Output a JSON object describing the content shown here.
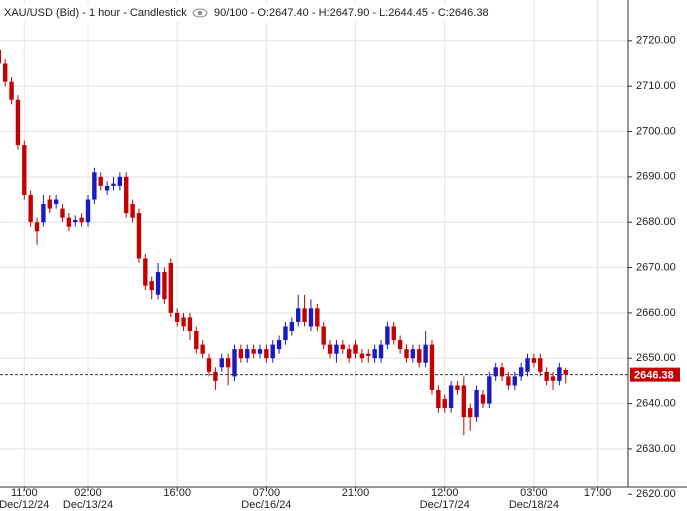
{
  "chart_data": {
    "type": "candlestick",
    "title": "XAU/USD (Bid) - 1 hour - Candlestick",
    "subtitle": "90/100 - O:2647.40 - H:2647.90 - L:2644.45 - C:2646.38",
    "categories": [
      null,
      null,
      null,
      null,
      "11:00",
      null,
      null,
      null,
      null,
      null,
      null,
      null,
      null,
      null,
      "02:00",
      null,
      null,
      null,
      null,
      null,
      null,
      null,
      null,
      null,
      null,
      null,
      null,
      null,
      "16:00",
      null,
      null,
      null,
      null,
      null,
      null,
      null,
      null,
      null,
      null,
      null,
      null,
      null,
      "07:00",
      null,
      null,
      null,
      null,
      null,
      null,
      null,
      null,
      null,
      null,
      null,
      null,
      null,
      "21:00",
      null,
      null,
      null,
      null,
      null,
      null,
      null,
      null,
      null,
      null,
      null,
      null,
      null,
      "12:00",
      null,
      null,
      null,
      null,
      null,
      null,
      null,
      null,
      null,
      null,
      null,
      null,
      null,
      "03:00",
      null,
      null,
      null,
      null,
      null,
      null,
      null,
      null,
      null,
      "17:00"
    ],
    "dates": [
      null,
      null,
      null,
      null,
      "Dec/12/24",
      null,
      null,
      null,
      null,
      null,
      null,
      null,
      null,
      null,
      "Dec/13/24",
      null,
      null,
      null,
      null,
      null,
      null,
      null,
      null,
      null,
      null,
      null,
      null,
      null,
      null,
      null,
      null,
      null,
      null,
      null,
      null,
      null,
      null,
      null,
      null,
      null,
      null,
      null,
      "Dec/16/24",
      null,
      null,
      null,
      null,
      null,
      null,
      null,
      null,
      null,
      null,
      null,
      null,
      null,
      null,
      null,
      null,
      null,
      null,
      null,
      null,
      null,
      null,
      null,
      null,
      null,
      null,
      null,
      "Dec/17/24",
      null,
      null,
      null,
      null,
      null,
      null,
      null,
      null,
      null,
      null,
      null,
      null,
      null,
      "Dec/18/24",
      null,
      null,
      null,
      null,
      null,
      null,
      null,
      null,
      null,
      null
    ],
    "open": [
      2718,
      2715,
      2711,
      2707,
      2697,
      2686,
      2680,
      2680,
      2685,
      2684,
      2683,
      2681,
      2680,
      2681,
      2680,
      2685,
      2690,
      2687,
      2688,
      2688,
      2690,
      2684,
      2682,
      2672,
      2667,
      2664,
      2669,
      2671,
      2660,
      2659,
      2659,
      2656,
      2653,
      2650,
      2647,
      2648,
      2650,
      2646,
      2652,
      2650,
      2652,
      2651,
      2652,
      2650,
      2652,
      2654,
      2656,
      2658,
      2661,
      2657,
      2661,
      2657,
      2653,
      2651,
      2653,
      2652,
      2653,
      2651,
      2651,
      2650,
      2650,
      2653,
      2657,
      2654,
      2652,
      2650,
      2652,
      2649,
      2653,
      2643,
      2641,
      2639,
      2644,
      2644,
      2639,
      2637,
      2642,
      2640,
      2646,
      2648,
      2646,
      2644,
      2646,
      2647,
      2650,
      2650,
      2647,
      2646,
      2645,
      2647.4,
      null,
      null,
      null,
      null,
      null
    ],
    "high": [
      2719,
      2716,
      2712,
      2708,
      2698,
      2687,
      2681,
      2686,
      2686,
      2686,
      2684,
      2682,
      2681.5,
      2682,
      2686,
      2692,
      2691,
      2689,
      2690,
      2691,
      2691,
      2685,
      2683,
      2673,
      2668,
      2671,
      2670,
      2672,
      2661,
      2660,
      2660,
      2657,
      2654,
      2651,
      2648,
      2651,
      2651,
      2653,
      2653,
      2653,
      2653,
      2653,
      2653,
      2654,
      2655,
      2658,
      2659,
      2664,
      2664,
      2663,
      2662,
      2658,
      2654,
      2654,
      2654,
      2653,
      2654,
      2652,
      2652,
      2653,
      2654,
      2658,
      2658,
      2655,
      2653,
      2653,
      2653,
      2656,
      2654,
      2644,
      2642,
      2645,
      2645,
      2646,
      2640,
      2644,
      2643,
      2647,
      2649,
      2649,
      2647,
      2647,
      2649,
      2651,
      2651,
      2651,
      2648,
      2647,
      2649,
      2647.9,
      null,
      null,
      null,
      null,
      null
    ],
    "low": [
      2714,
      2710,
      2706,
      2696,
      2685,
      2679,
      2675,
      2679,
      2682,
      2683,
      2680,
      2678,
      2679,
      2679,
      2679,
      2684,
      2687,
      2686,
      2687,
      2687,
      2681,
      2680,
      2671,
      2665,
      2663,
      2663,
      2662,
      2659,
      2657,
      2656,
      2654,
      2651,
      2650,
      2646,
      2643,
      2647,
      2644,
      2645,
      2649,
      2649,
      2650,
      2650,
      2649,
      2649,
      2651,
      2653,
      2655,
      2657,
      2657,
      2656,
      2656,
      2652,
      2650,
      2649,
      2651,
      2649,
      2650,
      2649,
      2649,
      2649,
      2649,
      2652,
      2653,
      2651,
      2649,
      2649,
      2648,
      2648,
      2642,
      2638,
      2638,
      2638,
      2642,
      2633,
      2634,
      2636,
      2639,
      2639,
      2645,
      2645,
      2643,
      2643,
      2645,
      2646,
      2648,
      2646,
      2644,
      2643,
      2644,
      2644.45,
      null,
      null,
      null,
      null,
      null
    ],
    "close": [
      2715,
      2711,
      2707,
      2697,
      2686,
      2680,
      2678,
      2684,
      2683,
      2685,
      2681,
      2679,
      2680.5,
      2680,
      2685,
      2691,
      2688,
      2688,
      2688.5,
      2690,
      2682,
      2681,
      2672,
      2666,
      2665,
      2669,
      2663,
      2660,
      2658,
      2657,
      2656,
      2652,
      2651,
      2647,
      2645,
      2650,
      2648,
      2652,
      2650,
      2652,
      2651,
      2652,
      2650,
      2653,
      2654,
      2657,
      2658,
      2661,
      2658,
      2661,
      2657,
      2653,
      2651,
      2653,
      2652,
      2650,
      2651,
      2650,
      2650.5,
      2652,
      2653,
      2657,
      2654,
      2652,
      2650,
      2652,
      2649,
      2653,
      2643,
      2639,
      2639,
      2644,
      2643,
      2637,
      2637,
      2643,
      2640,
      2646,
      2648,
      2646,
      2644,
      2646,
      2648,
      2650,
      2649,
      2647,
      2645,
      2645,
      2648,
      2646.38,
      null,
      null,
      null,
      null,
      null
    ],
    "up_color": "#1a1ac4",
    "down_color": "#c40000",
    "last_price": 2646.38,
    "ylim": [
      2621.6,
      2729
    ],
    "yticks": [
      {
        "value": 2620,
        "label": "2620.00"
      },
      {
        "value": 2630,
        "label": "2630.00"
      },
      {
        "value": 2640,
        "label": "2640.00"
      },
      {
        "value": 2650,
        "label": "2650.00"
      },
      {
        "value": 2660,
        "label": "2660.00"
      },
      {
        "value": 2670,
        "label": "2670.00"
      },
      {
        "value": 2680,
        "label": "2680.00"
      },
      {
        "value": 2690,
        "label": "2690.00"
      },
      {
        "value": 2700,
        "label": "2700.00"
      },
      {
        "value": 2710,
        "label": "2710.00"
      },
      {
        "value": 2720,
        "label": "2720.00"
      }
    ],
    "grid": true
  }
}
